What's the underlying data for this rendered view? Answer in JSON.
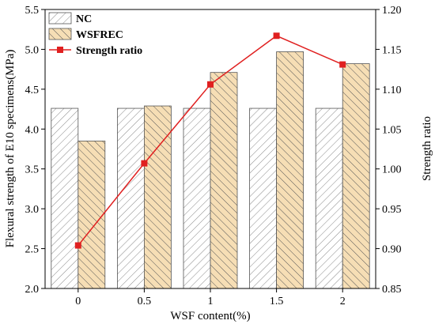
{
  "chart_data": {
    "type": "bar",
    "categories": [
      "0",
      "0.5",
      "1",
      "1.5",
      "2"
    ],
    "series": [
      {
        "name": "NC",
        "values": [
          4.26,
          4.26,
          4.26,
          4.26,
          4.26
        ],
        "color": "#ffffff",
        "hatch": "forward-slash"
      },
      {
        "name": "WSFREC",
        "values": [
          3.85,
          4.29,
          4.71,
          4.97,
          4.82
        ],
        "color": "#f6deb5",
        "hatch": "back-slash"
      },
      {
        "name": "Strength ratio",
        "type": "line",
        "axis": "right",
        "values": [
          0.904,
          1.007,
          1.106,
          1.167,
          1.131
        ],
        "color": "#e02020"
      }
    ],
    "xlabel": "WSF content(%)",
    "ylabel": "Flexural strength of E10 specimens(MPa)",
    "y2label": "Strength ratio",
    "ylim": [
      2.0,
      5.5
    ],
    "y2lim": [
      0.85,
      1.2
    ],
    "yticks": [
      "2.0",
      "2.5",
      "3.0",
      "3.5",
      "4.0",
      "4.5",
      "5.0",
      "5.5"
    ],
    "y2ticks": [
      "0.85",
      "0.90",
      "0.95",
      "1.00",
      "1.05",
      "1.10",
      "1.15",
      "1.20"
    ],
    "legend_position": "top-left",
    "grid": false
  }
}
